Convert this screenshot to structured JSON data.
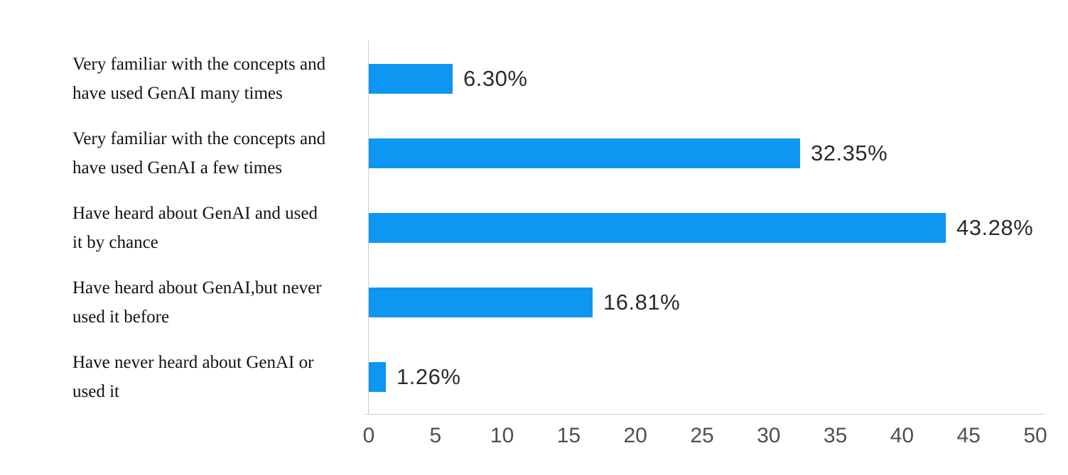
{
  "chart_data": {
    "type": "bar",
    "orientation": "horizontal",
    "title": "",
    "xlabel": "",
    "ylabel": "",
    "categories": [
      "Very familiar with the concepts and have used GenAI many times",
      "Very familiar with the concepts and have used GenAI a few times",
      "Have heard about GenAI and used it by chance",
      "Have heard about GenAI,but never used it before",
      "Have never heard about GenAI or used it"
    ],
    "category_lines": [
      [
        "Very familiar with the concepts and",
        "have used GenAI many times"
      ],
      [
        "Very familiar with the concepts and",
        "have used GenAI a few times"
      ],
      [
        "Have heard about GenAI and used",
        "it by chance"
      ],
      [
        "Have heard about GenAI,but never",
        "used it before"
      ],
      [
        "Have never heard about GenAI or",
        "used it"
      ]
    ],
    "values": [
      6.3,
      32.35,
      43.28,
      16.81,
      1.26
    ],
    "value_labels": [
      "6.30%",
      "32.35%",
      "43.28%",
      "16.81%",
      "1.26%"
    ],
    "xlim": [
      0,
      50
    ],
    "x_ticks": [
      0,
      5,
      10,
      15,
      20,
      25,
      30,
      35,
      40,
      45,
      50
    ],
    "grid": false,
    "legend": false,
    "bar_color": "#0d96f2",
    "axis_line_color": "#cfcfcf",
    "tick_label_color": "#4f4f4f",
    "value_label_color": "#2b2b2b",
    "category_label_color": "#121212",
    "background": "#ffffff"
  }
}
